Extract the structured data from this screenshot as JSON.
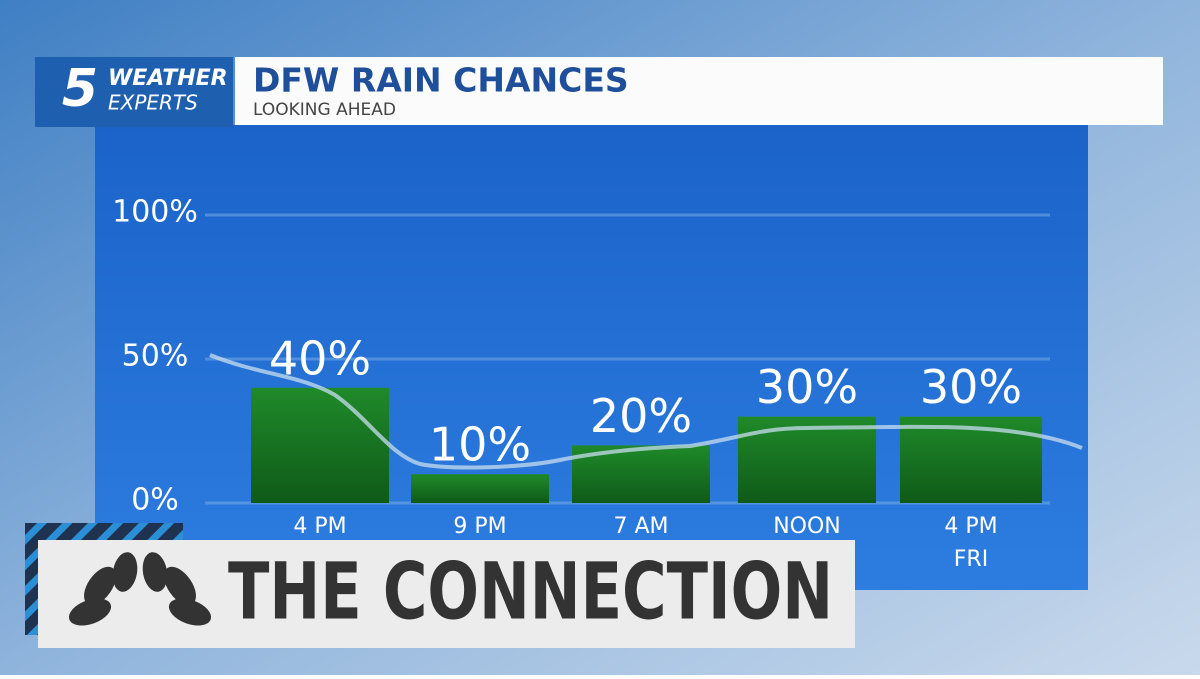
{
  "logo": {
    "number": "5",
    "line1": "WEATHER",
    "line2": "EXPERTS"
  },
  "chart_data": {
    "type": "bar",
    "title": "DFW RAIN CHANCES",
    "subtitle": "LOOKING AHEAD",
    "categories": [
      "4 PM",
      "9 PM",
      "7 AM",
      "NOON",
      "4 PM"
    ],
    "category_days": [
      null,
      null,
      null,
      null,
      "FRI"
    ],
    "values": [
      40,
      10,
      20,
      30,
      30
    ],
    "value_labels": [
      "40%",
      "10%",
      "20%",
      "30%",
      "30%"
    ],
    "color": "#1e7f26",
    "ylim": [
      0,
      100
    ],
    "yticks": [
      {
        "value": 0,
        "label": "0%"
      },
      {
        "value": 50,
        "label": "50%"
      },
      {
        "value": 100,
        "label": "100%"
      }
    ],
    "grid": true
  },
  "banner": {
    "text": "THE CONNECTION"
  }
}
